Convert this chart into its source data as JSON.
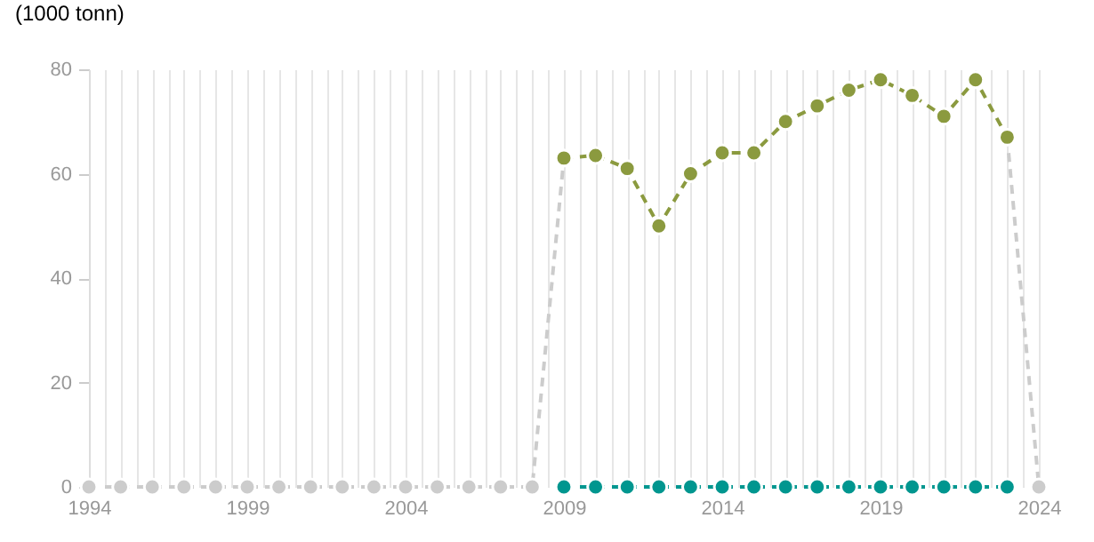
{
  "chart_data": {
    "type": "line",
    "ylabel": "(1000 tonn)",
    "x": [
      1994,
      1995,
      1996,
      1997,
      1998,
      1999,
      2000,
      2001,
      2002,
      2003,
      2004,
      2005,
      2006,
      2007,
      2008,
      2009,
      2010,
      2011,
      2012,
      2013,
      2014,
      2015,
      2016,
      2017,
      2018,
      2019,
      2020,
      2021,
      2022,
      2023,
      2024
    ],
    "series": [
      {
        "color": "#cccccc",
        "line_style": "dashed",
        "values": [
          0,
          0,
          0,
          0,
          0,
          0,
          0,
          0,
          0,
          0,
          0,
          0,
          0,
          0,
          0,
          63,
          null,
          null,
          null,
          null,
          null,
          null,
          null,
          null,
          null,
          null,
          null,
          null,
          null,
          67,
          0
        ]
      },
      {
        "color": "#8b9a3f",
        "line_style": "dashed",
        "x": [
          2009,
          2010,
          2011,
          2012,
          2013,
          2014,
          2015,
          2016,
          2017,
          2018,
          2019,
          2020,
          2021,
          2022,
          2023
        ],
        "values": [
          63,
          63.5,
          61,
          50,
          60,
          64,
          64,
          70,
          73,
          76,
          78,
          75,
          71,
          78,
          67
        ]
      },
      {
        "color": "#00968f",
        "line_style": "dashed",
        "x": [
          2009,
          2010,
          2011,
          2012,
          2013,
          2014,
          2015,
          2016,
          2017,
          2018,
          2019,
          2020,
          2021,
          2022,
          2023
        ],
        "values": [
          0,
          0,
          0,
          0,
          0,
          0,
          0,
          0,
          0,
          0,
          0,
          0,
          0,
          0,
          0
        ]
      }
    ],
    "xlim": [
      1994,
      2024
    ],
    "xticks": [
      1994,
      {
        "value": 1994.5,
        "label": null
      },
      {
        "value": 1995,
        "label": null
      },
      {
        "value": 1995.5,
        "label": null
      },
      {
        "value": 1996,
        "label": null
      },
      {
        "value": 1996.5,
        "label": null
      },
      {
        "value": 1997,
        "label": null
      },
      {
        "value": 1997.5,
        "label": null
      },
      {
        "value": 1998,
        "label": null
      },
      {
        "value": 1998.5,
        "label": null
      },
      1999,
      {
        "value": 1999.5,
        "label": null
      },
      {
        "value": 2000,
        "label": null
      },
      {
        "value": 2000.5,
        "label": null
      },
      {
        "value": 2001,
        "label": null
      },
      {
        "value": 2001.5,
        "label": null
      },
      {
        "value": 2002,
        "label": null
      },
      {
        "value": 2002.5,
        "label": null
      },
      {
        "value": 2003,
        "label": null
      },
      {
        "value": 2003.5,
        "label": null
      },
      2004,
      {
        "value": 2004.5,
        "label": null
      },
      {
        "value": 2005,
        "label": null
      },
      {
        "value": 2005.5,
        "label": null
      },
      {
        "value": 2006,
        "label": null
      },
      {
        "value": 2006.5,
        "label": null
      },
      {
        "value": 2007,
        "label": null
      },
      {
        "value": 2007.5,
        "label": null
      },
      {
        "value": 2008,
        "label": null
      },
      {
        "value": 2008.5,
        "label": null
      },
      2009,
      {
        "value": 2009.5,
        "label": null
      },
      {
        "value": 2010,
        "label": null
      },
      {
        "value": 2010.5,
        "label": null
      },
      {
        "value": 2011,
        "label": null
      },
      {
        "value": 2011.5,
        "label": null
      },
      {
        "value": 2012,
        "label": null
      },
      {
        "value": 2012.5,
        "label": null
      },
      {
        "value": 2013,
        "label": null
      },
      {
        "value": 2013.5,
        "label": null
      },
      2014,
      {
        "value": 2014.5,
        "label": null
      },
      {
        "value": 2015,
        "label": null
      },
      {
        "value": 2015.5,
        "label": null
      },
      {
        "value": 2016,
        "label": null
      },
      {
        "value": 2016.5,
        "label": null
      },
      {
        "value": 2017,
        "label": null
      },
      {
        "value": 2017.5,
        "label": null
      },
      {
        "value": 2018,
        "label": null
      },
      {
        "value": 2018.5,
        "label": null
      },
      2019,
      {
        "value": 2019.5,
        "label": null
      },
      {
        "value": 2020,
        "label": null
      },
      {
        "value": 2020.5,
        "label": null
      },
      {
        "value": 2021,
        "label": null
      },
      {
        "value": 2021.5,
        "label": null
      },
      {
        "value": 2022,
        "label": null
      },
      {
        "value": 2022.5,
        "label": null
      },
      {
        "value": 2023,
        "label": null
      },
      {
        "value": 2023.5,
        "label": null
      },
      2024
    ],
    "ylim": [
      0,
      80
    ],
    "yticks": [
      0,
      20,
      40,
      60,
      80
    ],
    "grid": "x",
    "marker": "circle"
  }
}
